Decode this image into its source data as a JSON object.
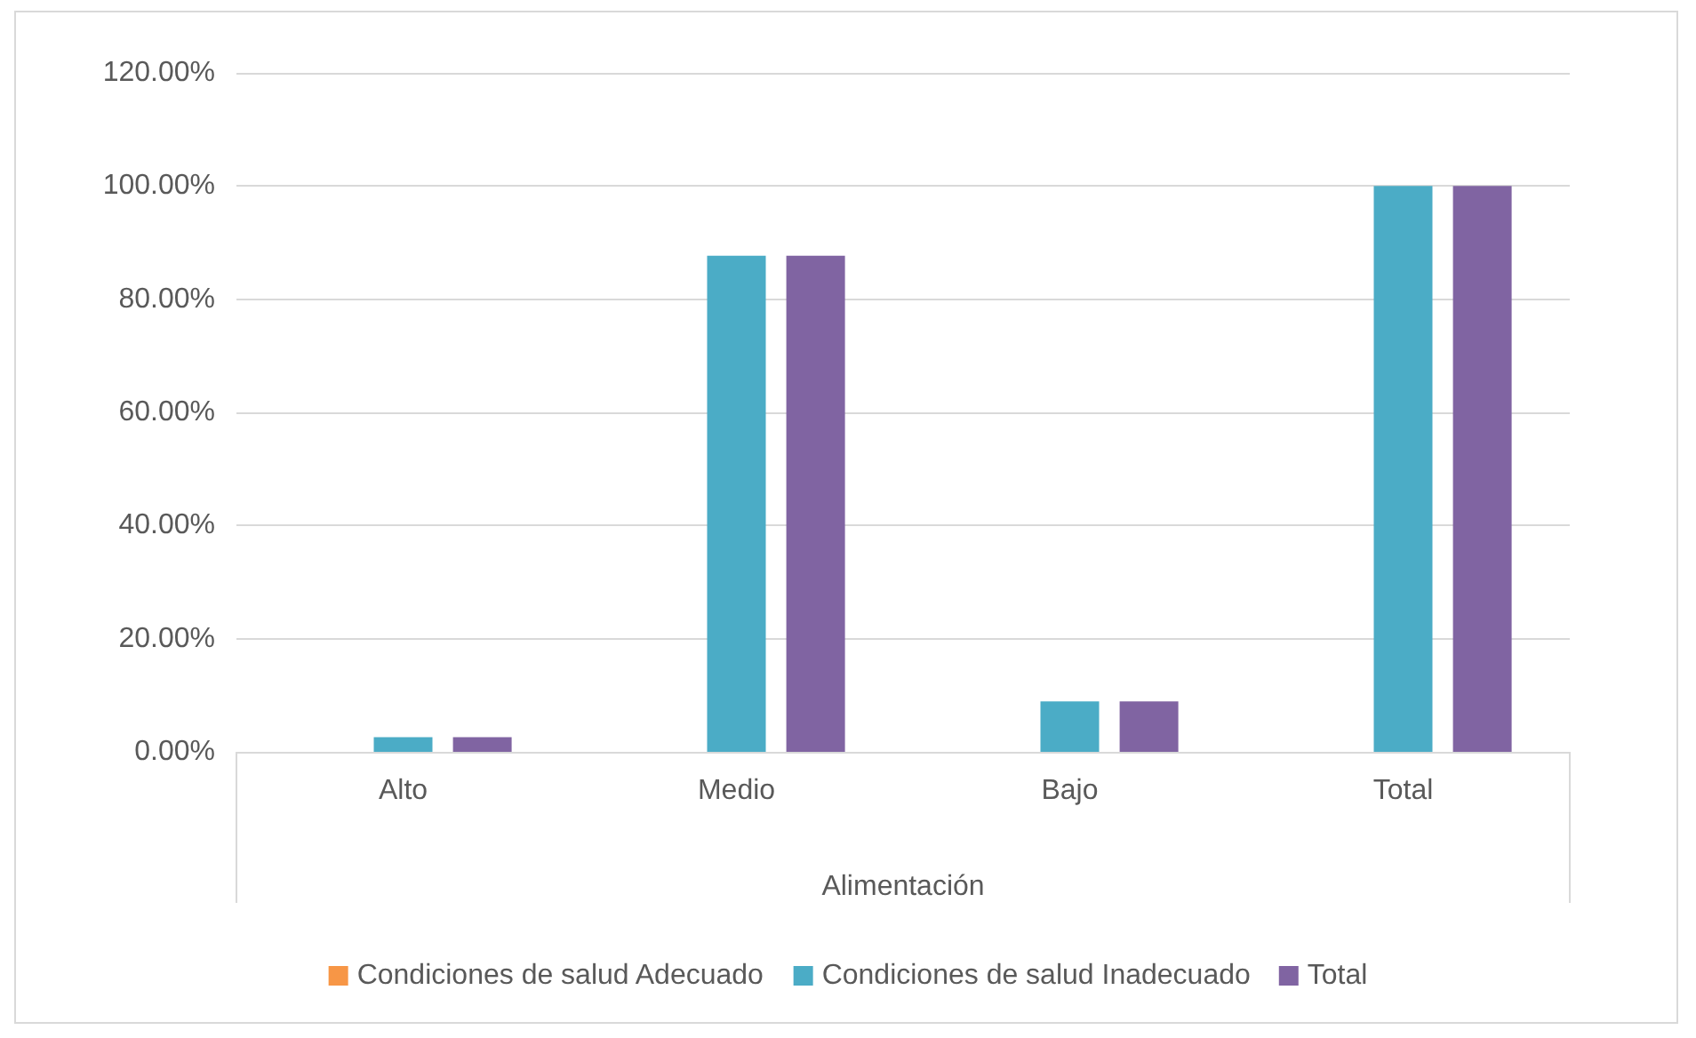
{
  "chart_data": {
    "type": "bar",
    "xlabel": "Alimentación",
    "categories": [
      "Alto",
      "Medio",
      "Bajo",
      "Total"
    ],
    "series": [
      {
        "name": "Condiciones de salud Adecuado",
        "color": "#f79646",
        "values": [
          0,
          0,
          0,
          0
        ]
      },
      {
        "name": "Condiciones de salud Inadecuado",
        "color": "#4bacc6",
        "values": [
          2.6,
          87.7,
          8.9,
          100
        ]
      },
      {
        "name": "Total",
        "color": "#8064a2",
        "values": [
          2.6,
          87.7,
          8.9,
          100
        ]
      }
    ],
    "ylim": [
      0,
      120
    ],
    "yticks": [
      {
        "value": 0,
        "label": "0.00%"
      },
      {
        "value": 20,
        "label": "20.00%"
      },
      {
        "value": 40,
        "label": "40.00%"
      },
      {
        "value": 60,
        "label": "60.00%"
      },
      {
        "value": 80,
        "label": "80.00%"
      },
      {
        "value": 100,
        "label": "100.00%"
      },
      {
        "value": 120,
        "label": "120.00%"
      }
    ],
    "grid": "y",
    "legend": "bottom"
  }
}
